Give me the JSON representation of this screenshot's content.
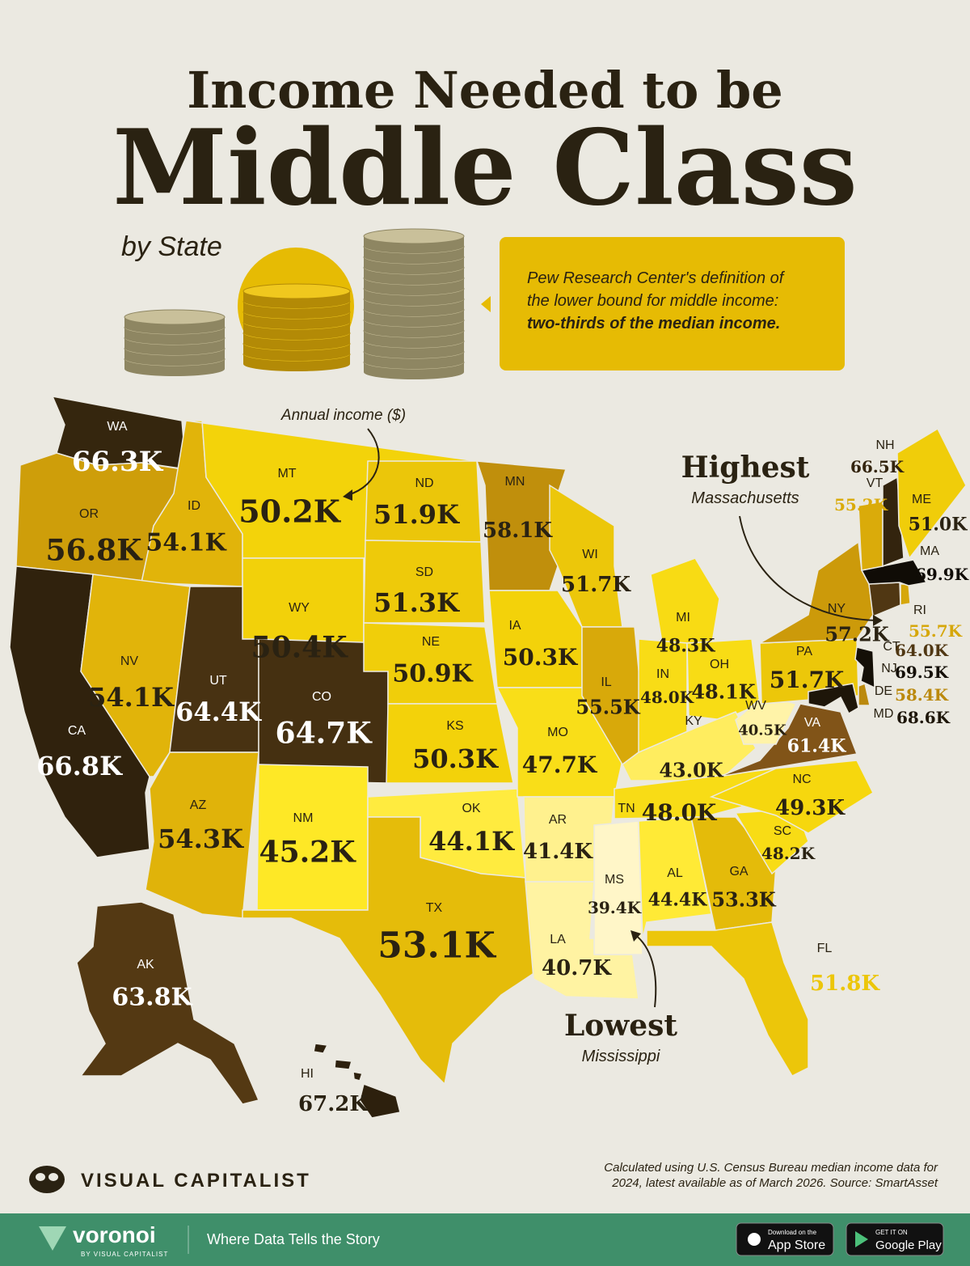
{
  "header": {
    "title_line1": "Income Needed to be",
    "title_line2": "Middle Class",
    "subtitle": "by State"
  },
  "callout": {
    "lines": [
      "Pew Research Center's definition of",
      "the lower bound for middle income:",
      "two-thirds of the median income."
    ]
  },
  "chart_data": {
    "type": "map",
    "annotation": "Annual income ($)",
    "highest": {
      "label": "Highest",
      "state": "Massachusetts"
    },
    "lowest": {
      "label": "Lowest",
      "state": "Mississippi"
    },
    "categories": [
      "WA",
      "OR",
      "CA",
      "ID",
      "NV",
      "MT",
      "WY",
      "UT",
      "CO",
      "AZ",
      "NM",
      "ND",
      "SD",
      "NE",
      "KS",
      "OK",
      "TX",
      "MN",
      "IA",
      "MO",
      "AR",
      "LA",
      "WI",
      "IL",
      "MI",
      "IN",
      "OH",
      "KY",
      "TN",
      "MS",
      "AL",
      "GA",
      "FL",
      "SC",
      "NC",
      "VA",
      "WV",
      "PA",
      "NY",
      "NJ",
      "DE",
      "MD",
      "CT",
      "RI",
      "MA",
      "VT",
      "NH",
      "ME",
      "AK",
      "HI"
    ],
    "values": [
      66.3,
      56.8,
      66.8,
      54.1,
      54.1,
      50.2,
      50.4,
      64.4,
      64.7,
      54.3,
      45.2,
      51.9,
      51.3,
      50.9,
      50.3,
      44.1,
      53.1,
      58.1,
      50.3,
      47.7,
      41.4,
      40.7,
      51.7,
      55.5,
      48.3,
      48.0,
      48.1,
      43.0,
      48.0,
      39.4,
      44.4,
      53.3,
      51.8,
      48.2,
      49.3,
      61.4,
      40.5,
      51.7,
      57.2,
      69.5,
      58.4,
      68.6,
      64.0,
      55.7,
      69.9,
      55.2,
      66.5,
      51.0,
      63.8,
      67.2
    ],
    "value_labels": [
      "66.3K",
      "56.8K",
      "66.8K",
      "54.1K",
      "54.1K",
      "50.2K",
      "50.4K",
      "64.4K",
      "64.7K",
      "54.3K",
      "45.2K",
      "51.9K",
      "51.3K",
      "50.9K",
      "50.3K",
      "44.1K",
      "53.1K",
      "58.1K",
      "50.3K",
      "47.7K",
      "41.4K",
      "40.7K",
      "51.7K",
      "55.5K",
      "48.3K",
      "48.0K",
      "48.1K",
      "43.0K",
      "48.0K",
      "39.4K",
      "44.4K",
      "53.3K",
      "51.8K",
      "48.2K",
      "49.3K",
      "61.4K",
      "40.5K",
      "51.7K",
      "57.2K",
      "69.5K",
      "58.4K",
      "68.6K",
      "64.0K",
      "55.7K",
      "69.9K",
      "55.2K",
      "66.5K",
      "51.0K",
      "63.8K",
      "67.2K"
    ]
  },
  "footer": {
    "brand": "VISUAL CAPITALIST",
    "source_lines": [
      "Calculated using U.S. Census Bureau median income data for",
      "2024, latest available as of March 2026. Source: SmartAsset"
    ],
    "voronoi": "voronoi",
    "voronoi_sub": "BY VISUAL CAPITALIST",
    "tagline": "Where Data Tells the Story",
    "app_store_small": "Download on the",
    "app_store": "App Store",
    "google_small": "GET IT ON",
    "google": "Google Play"
  }
}
